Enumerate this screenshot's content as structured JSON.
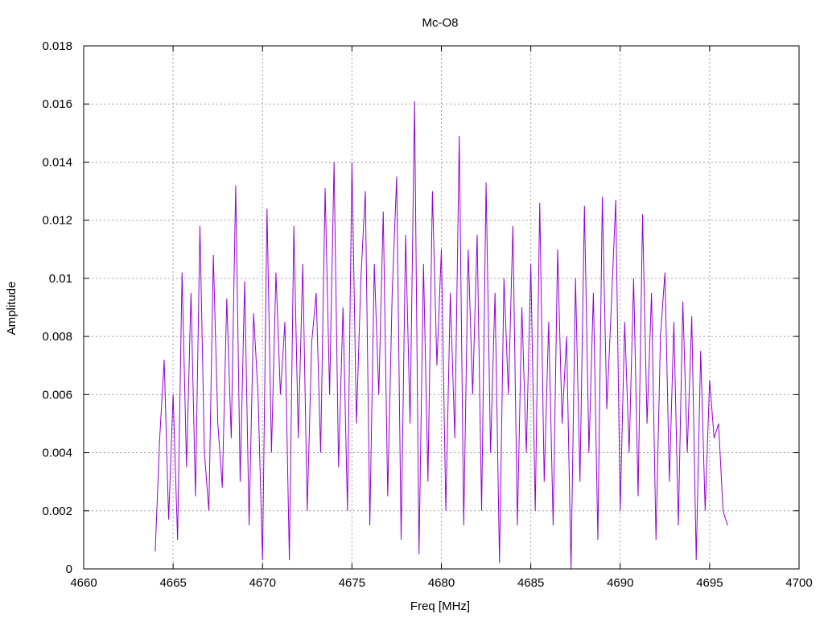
{
  "chart_data": {
    "type": "line",
    "title": "Mc-O8",
    "xlabel": "Freq [MHz]",
    "ylabel": "Amplitude",
    "xlim": [
      4660,
      4700
    ],
    "ylim": [
      0,
      0.018
    ],
    "xticks": [
      4660,
      4665,
      4670,
      4675,
      4680,
      4685,
      4690,
      4695,
      4700
    ],
    "xtick_labels": [
      "4660",
      "4665",
      "4670",
      "4675",
      "4680",
      "4685",
      "4690",
      "4695",
      "4700"
    ],
    "yticks": [
      0,
      0.002,
      0.004,
      0.006,
      0.008,
      0.01,
      0.012,
      0.014,
      0.016,
      0.018
    ],
    "ytick_labels": [
      "0",
      "0.002",
      "0.004",
      "0.006",
      "0.008",
      "0.01",
      "0.012",
      "0.014",
      "0.016",
      "0.018"
    ],
    "grid": true,
    "line_color": "#9400d3",
    "series": [
      {
        "x": [
          4664.0,
          4664.25,
          4664.5,
          4664.75,
          4665.0,
          4665.25,
          4665.5,
          4665.75,
          4666.0,
          4666.25,
          4666.5,
          4666.75,
          4667.0,
          4667.25,
          4667.5,
          4667.75,
          4668.0,
          4668.25,
          4668.5,
          4668.75,
          4669.0,
          4669.25,
          4669.5,
          4669.75,
          4670.0,
          4670.25,
          4670.5,
          4670.75,
          4671.0,
          4671.25,
          4671.5,
          4671.75,
          4672.0,
          4672.25,
          4672.5,
          4672.75,
          4673.0,
          4673.25,
          4673.5,
          4673.75,
          4674.0,
          4674.25,
          4674.5,
          4674.75,
          4675.0,
          4675.25,
          4675.5,
          4675.75,
          4676.0,
          4676.25,
          4676.5,
          4676.75,
          4677.0,
          4677.25,
          4677.5,
          4677.75,
          4678.0,
          4678.25,
          4678.5,
          4678.75,
          4679.0,
          4679.25,
          4679.5,
          4679.75,
          4680.0,
          4680.25,
          4680.5,
          4680.75,
          4681.0,
          4681.25,
          4681.5,
          4681.75,
          4682.0,
          4682.25,
          4682.5,
          4682.75,
          4683.0,
          4683.25,
          4683.5,
          4683.75,
          4684.0,
          4684.25,
          4684.5,
          4684.75,
          4685.0,
          4685.25,
          4685.5,
          4685.75,
          4686.0,
          4686.25,
          4686.5,
          4686.75,
          4687.0,
          4687.25,
          4687.5,
          4687.75,
          4688.0,
          4688.25,
          4688.5,
          4688.75,
          4689.0,
          4689.25,
          4689.5,
          4689.75,
          4690.0,
          4690.25,
          4690.5,
          4690.75,
          4691.0,
          4691.25,
          4691.5,
          4691.75,
          4692.0,
          4692.25,
          4692.5,
          4692.75,
          4693.0,
          4693.25,
          4693.5,
          4693.75,
          4694.0,
          4694.25,
          4694.5,
          4694.75,
          4695.0,
          4695.25,
          4695.5,
          4695.75,
          4696.0
        ],
        "y": [
          0.0006,
          0.0045,
          0.0072,
          0.0017,
          0.006,
          0.001,
          0.0102,
          0.0035,
          0.0095,
          0.0025,
          0.0118,
          0.004,
          0.002,
          0.0108,
          0.005,
          0.0028,
          0.0093,
          0.0045,
          0.0132,
          0.003,
          0.0099,
          0.0015,
          0.0088,
          0.006,
          0.0003,
          0.0124,
          0.004,
          0.0102,
          0.006,
          0.0085,
          0.0003,
          0.0118,
          0.0045,
          0.0105,
          0.002,
          0.0078,
          0.0095,
          0.004,
          0.0131,
          0.006,
          0.014,
          0.0035,
          0.009,
          0.002,
          0.014,
          0.005,
          0.01,
          0.013,
          0.0015,
          0.0105,
          0.006,
          0.0123,
          0.0025,
          0.0095,
          0.0135,
          0.001,
          0.0115,
          0.005,
          0.0161,
          0.0005,
          0.0105,
          0.003,
          0.013,
          0.007,
          0.011,
          0.002,
          0.0095,
          0.0045,
          0.0149,
          0.0015,
          0.011,
          0.006,
          0.0115,
          0.002,
          0.0133,
          0.004,
          0.0095,
          0.0002,
          0.01,
          0.006,
          0.0118,
          0.0015,
          0.009,
          0.004,
          0.0105,
          0.002,
          0.0126,
          0.003,
          0.0085,
          0.0015,
          0.011,
          0.005,
          0.008,
          0.0,
          0.01,
          0.003,
          0.0125,
          0.004,
          0.0095,
          0.001,
          0.0128,
          0.0055,
          0.009,
          0.0127,
          0.002,
          0.0085,
          0.004,
          0.01,
          0.0025,
          0.0122,
          0.005,
          0.0095,
          0.001,
          0.008,
          0.0102,
          0.003,
          0.0085,
          0.0015,
          0.0092,
          0.004,
          0.0087,
          0.0003,
          0.0075,
          0.002,
          0.0065,
          0.0045,
          0.005,
          0.002,
          0.0015
        ]
      }
    ]
  }
}
